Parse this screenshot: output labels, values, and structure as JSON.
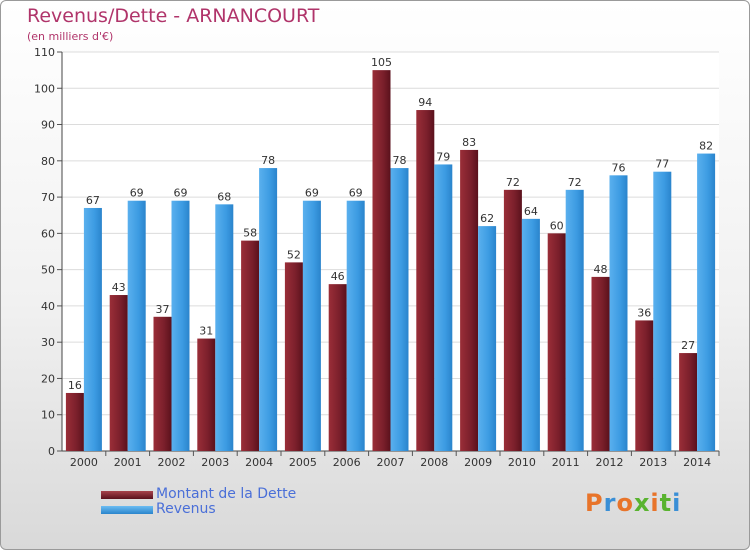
{
  "header": {
    "title": "Revenus/Dette - ARNANCOURT",
    "subtitle": "(en milliers d'€)"
  },
  "logo": {
    "text": "Proxiti",
    "colors": [
      "#e8742a",
      "#3a8fd6",
      "#e8742a",
      "#59b32f",
      "#e8742a",
      "#59b32f",
      "#3a8fd6"
    ]
  },
  "colors": {
    "dette": "#7a1f2b",
    "revenus": "#3c9be2"
  },
  "chart_data": {
    "type": "bar",
    "title": "Revenus/Dette - ARNANCOURT",
    "subtitle": "(en milliers d'€)",
    "categories": [
      "2000",
      "2001",
      "2002",
      "2003",
      "2004",
      "2005",
      "2006",
      "2007",
      "2008",
      "2009",
      "2010",
      "2011",
      "2012",
      "2013",
      "2014"
    ],
    "series": [
      {
        "name": "Montant de la Dette",
        "values": [
          16,
          43,
          37,
          31,
          58,
          52,
          46,
          105,
          94,
          83,
          72,
          60,
          48,
          36,
          27
        ]
      },
      {
        "name": "Revenus",
        "values": [
          67,
          69,
          69,
          68,
          78,
          69,
          69,
          78,
          79,
          62,
          64,
          72,
          76,
          77,
          82
        ]
      }
    ],
    "ylim": [
      0,
      110
    ],
    "yticks": [
      0,
      10,
      20,
      30,
      40,
      50,
      60,
      70,
      80,
      90,
      100,
      110
    ],
    "grid": true,
    "legend_position": "bottom-left"
  }
}
